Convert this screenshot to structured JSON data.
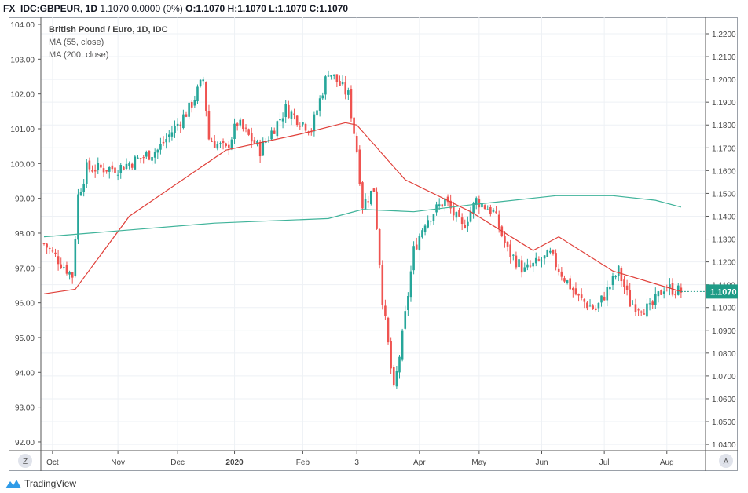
{
  "header": {
    "symbol": "FX_IDC:GBPEUR, 1D",
    "last": "1.1070",
    "change": "0.0000 (0%)",
    "o": "O:1.1070",
    "h": "H:1.1070",
    "l": "L:1.1070",
    "c": "C:1.1070"
  },
  "legend": {
    "title": "British Pound / Euro, 1D, IDC",
    "ma55": "MA (55, close)",
    "ma200": "MA (200, close)"
  },
  "price_label": "1.1070",
  "buttons": {
    "zoom": "Z",
    "auto": "A"
  },
  "brand": "TradingView",
  "colors": {
    "up": "#26a69a",
    "down": "#ef5350",
    "ma55": "#e0403a",
    "ma200": "#3fb39a",
    "label_bg": "#1f9c87"
  },
  "chart_data": {
    "type": "candlestick",
    "title": "British Pound / Euro, 1D, IDC",
    "left_axis": {
      "ticks": [
        "104.00",
        "103.00",
        "102.00",
        "101.00",
        "100.00",
        "99.00",
        "98.00",
        "97.00",
        "96.00",
        "95.00",
        "94.00",
        "93.00",
        "92.00"
      ],
      "range": [
        92,
        104
      ]
    },
    "right_axis": {
      "ticks": [
        "1.2200",
        "1.2100",
        "1.2000",
        "1.1900",
        "1.1800",
        "1.1700",
        "1.1600",
        "1.1500",
        "1.1400",
        "1.1300",
        "1.1200",
        "1.1100",
        "1.1000",
        "1.0900",
        "1.0800",
        "1.0700",
        "1.0600",
        "1.0500",
        "1.0400"
      ],
      "range": [
        1.04,
        1.22
      ]
    },
    "x_ticks": [
      {
        "label": "Oct",
        "day": 3
      },
      {
        "label": "Nov",
        "day": 26
      },
      {
        "label": "Dec",
        "day": 47
      },
      {
        "label": "2020",
        "day": 67
      },
      {
        "label": "Feb",
        "day": 91
      },
      {
        "label": "3",
        "day": 110
      },
      {
        "label": "Apr",
        "day": 132
      },
      {
        "label": "May",
        "day": 153
      },
      {
        "label": "Jun",
        "day": 175
      },
      {
        "label": "Jul",
        "day": 197
      },
      {
        "label": "Aug",
        "day": 219
      }
    ],
    "days": 225,
    "close_keypoints": [
      [
        0,
        1.128
      ],
      [
        10,
        1.114
      ],
      [
        12,
        1.149
      ],
      [
        15,
        1.161
      ],
      [
        26,
        1.161
      ],
      [
        40,
        1.169
      ],
      [
        51,
        1.187
      ],
      [
        56,
        1.2
      ],
      [
        58,
        1.174
      ],
      [
        64,
        1.169
      ],
      [
        68,
        1.181
      ],
      [
        76,
        1.169
      ],
      [
        85,
        1.187
      ],
      [
        94,
        1.178
      ],
      [
        100,
        1.204
      ],
      [
        107,
        1.193
      ],
      [
        110,
        1.169
      ],
      [
        112,
        1.145
      ],
      [
        116,
        1.152
      ],
      [
        119,
        1.104
      ],
      [
        123,
        1.063
      ],
      [
        126,
        1.087
      ],
      [
        130,
        1.125
      ],
      [
        134,
        1.138
      ],
      [
        141,
        1.147
      ],
      [
        147,
        1.135
      ],
      [
        152,
        1.147
      ],
      [
        158,
        1.142
      ],
      [
        163,
        1.125
      ],
      [
        169,
        1.116
      ],
      [
        178,
        1.123
      ],
      [
        183,
        1.113
      ],
      [
        188,
        1.104
      ],
      [
        194,
        1.099
      ],
      [
        202,
        1.116
      ],
      [
        206,
        1.102
      ],
      [
        213,
        1.099
      ],
      [
        218,
        1.109
      ],
      [
        224,
        1.107
      ]
    ],
    "series": [
      {
        "name": "MA (55, close)",
        "points": [
          [
            0,
            1.106
          ],
          [
            11,
            1.108
          ],
          [
            30,
            1.14
          ],
          [
            64,
            1.169
          ],
          [
            90,
            1.176
          ],
          [
            106,
            1.181
          ],
          [
            110,
            1.18
          ],
          [
            127,
            1.156
          ],
          [
            150,
            1.142
          ],
          [
            172,
            1.125
          ],
          [
            181,
            1.131
          ],
          [
            200,
            1.116
          ],
          [
            224,
            1.107
          ]
        ]
      },
      {
        "name": "MA (200, close)",
        "points": [
          [
            0,
            1.131
          ],
          [
            30,
            1.134
          ],
          [
            60,
            1.137
          ],
          [
            100,
            1.139
          ],
          [
            112,
            1.143
          ],
          [
            130,
            1.142
          ],
          [
            150,
            1.145
          ],
          [
            180,
            1.149
          ],
          [
            200,
            1.149
          ],
          [
            215,
            1.147
          ],
          [
            224,
            1.144
          ]
        ]
      }
    ]
  }
}
